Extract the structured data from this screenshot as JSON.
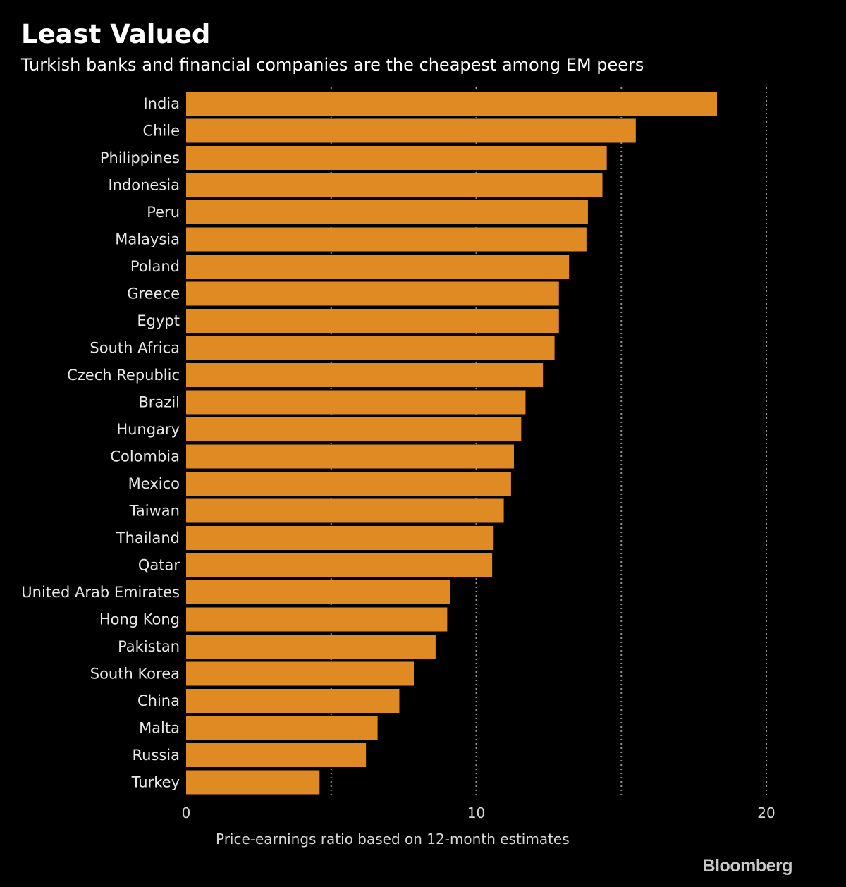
{
  "title": "Least Valued",
  "subtitle": "Turkish banks and financial companies are the cheapest among EM peers",
  "brand": "Bloomberg",
  "colors": {
    "background": "#000000",
    "bar": "#e08a24",
    "grid": "#8c8c8c",
    "text": "#ffffff"
  },
  "chart_data": {
    "type": "bar",
    "orientation": "horizontal",
    "title": "Least Valued",
    "subtitle": "Turkish banks and financial companies are the cheapest among EM peers",
    "xlabel": "Price-earnings ratio based on 12-month estimates",
    "ylabel": "",
    "xlim": [
      0,
      20
    ],
    "xticks": [
      0,
      10,
      20
    ],
    "xtick_labels": [
      "0",
      "10",
      "20"
    ],
    "grid": true,
    "grid_lines": [
      5,
      10,
      15,
      20
    ],
    "legend": "none",
    "categories": [
      "India",
      "Chile",
      "Philippines",
      "Indonesia",
      "Peru",
      "Malaysia",
      "Poland",
      "Greece",
      "Egypt",
      "South Africa",
      "Czech Republic",
      "Brazil",
      "Hungary",
      "Colombia",
      "Mexico",
      "Taiwan",
      "Thailand",
      "Qatar",
      "United Arab Emirates",
      "Hong Kong",
      "Pakistan",
      "South Korea",
      "China",
      "Malta",
      "Russia",
      "Turkey"
    ],
    "values": [
      18.3,
      15.5,
      14.5,
      14.35,
      13.85,
      13.8,
      13.2,
      12.85,
      12.85,
      12.7,
      12.3,
      11.7,
      11.55,
      11.3,
      11.2,
      10.95,
      10.6,
      10.55,
      9.1,
      9.0,
      8.6,
      7.85,
      7.35,
      6.6,
      6.2,
      4.6
    ]
  }
}
